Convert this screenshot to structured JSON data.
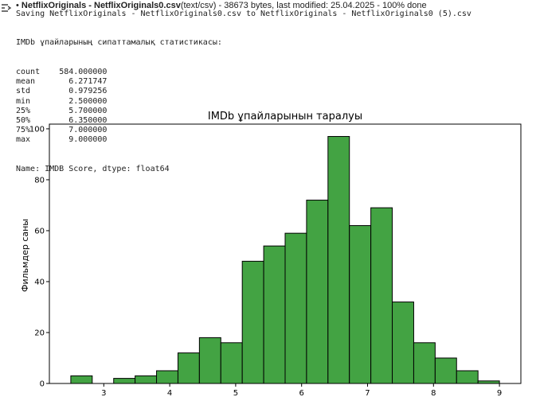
{
  "upload": {
    "bullet": "•",
    "widget_name": "NetflixOriginals",
    "separator": " - ",
    "filename": "NetflixOriginals0.csv",
    "details": "(text/csv) - 38673 bytes, last modified: 25.04.2025 - 100% done"
  },
  "output": {
    "icon": "output-expand-icon",
    "saving_line": "Saving NetflixOriginals - NetflixOriginals0.csv to NetflixOriginals - NetflixOriginals0 (5).csv",
    "stats_title": "IMDb ұпайларының сипаттамалық статистикасы:",
    "stats": [
      {
        "label": "count",
        "value": "584.000000"
      },
      {
        "label": "mean",
        "value": "6.271747"
      },
      {
        "label": "std",
        "value": "0.979256"
      },
      {
        "label": "min",
        "value": "2.500000"
      },
      {
        "label": "25%",
        "value": "5.700000"
      },
      {
        "label": "50%",
        "value": "6.350000"
      },
      {
        "label": "75%",
        "value": "7.000000"
      },
      {
        "label": "max",
        "value": "9.000000"
      }
    ],
    "stats_footer": "Name: IMDB Score, dtype: float64"
  },
  "chart_data": {
    "type": "bar",
    "title": "IMDb ұпайларынын таралуы",
    "xlabel": "",
    "ylabel": "Фильмдер саны",
    "bin_start": 2.5,
    "bin_width": 0.325,
    "values": [
      3,
      0,
      2,
      3,
      5,
      12,
      18,
      16,
      48,
      54,
      59,
      72,
      97,
      62,
      69,
      32,
      16,
      10,
      5,
      1
    ],
    "xlim": [
      2.175,
      9.325
    ],
    "ylim": [
      0,
      101.85
    ],
    "xticks": [
      "3",
      "4",
      "5",
      "6",
      "7",
      "8",
      "9"
    ],
    "yticks": [
      "0",
      "20",
      "40",
      "60",
      "80",
      "100"
    ],
    "bar_color": "#43a343",
    "edge_color": "#000000",
    "grid": false,
    "legend": "none"
  }
}
